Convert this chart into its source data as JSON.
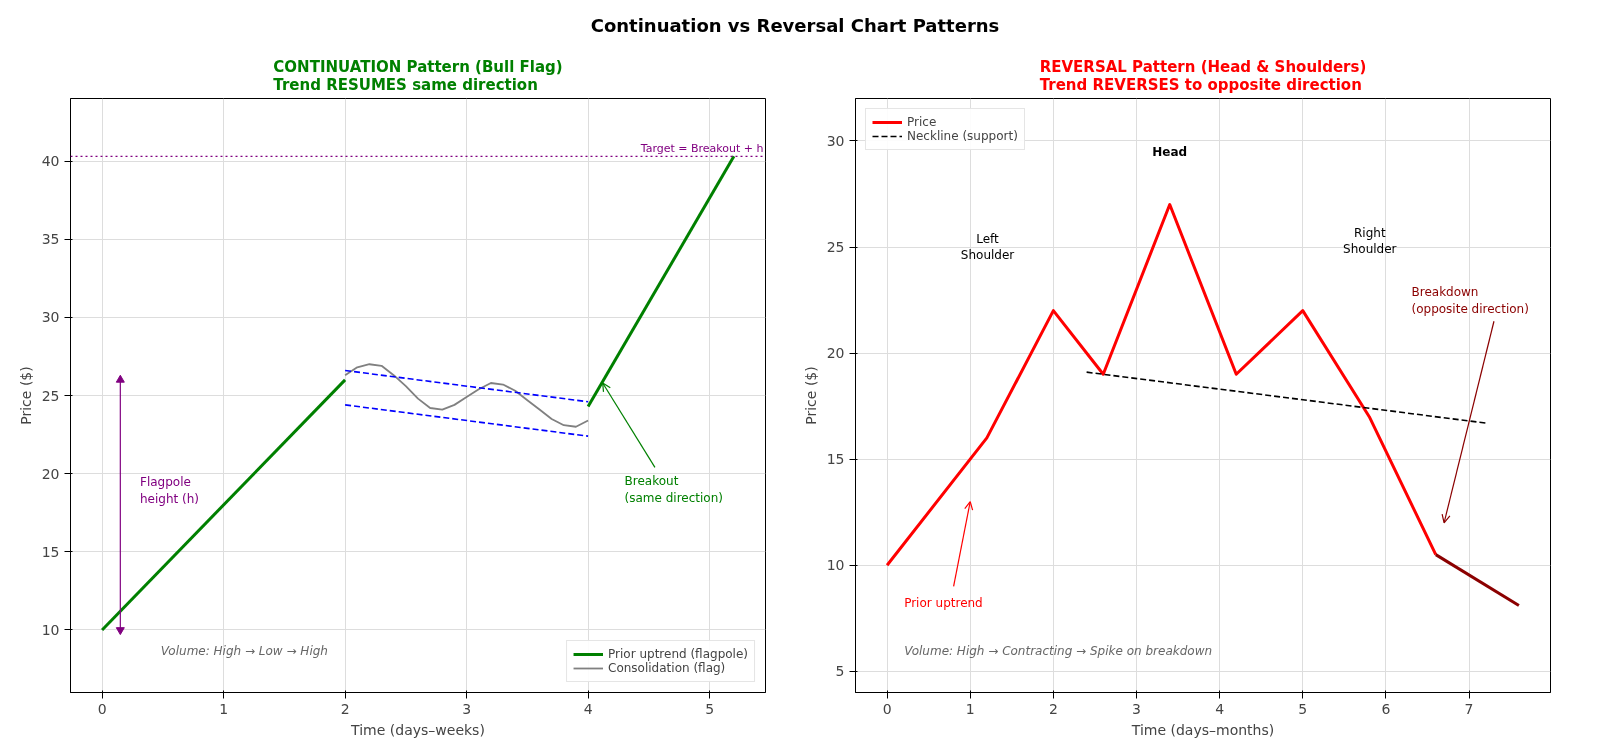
{
  "chart_data": [
    {
      "type": "other",
      "title": "Continuation vs Reversal Chart Patterns"
    },
    {
      "type": "line",
      "title": "CONTINUATION Pattern (Bull Flag)\nTrend RESUMES same direction",
      "xlabel": "Time (days–weeks)",
      "ylabel": "Price ($)",
      "xlim": [
        -0.26,
        5.46
      ],
      "ylim": [
        6,
        44
      ],
      "xticks": [
        0,
        1,
        2,
        3,
        4,
        5
      ],
      "yticks": [
        10,
        15,
        20,
        25,
        30,
        35,
        40
      ],
      "grid": true,
      "legend": "bottom right",
      "series": [
        {
          "name": "Prior uptrend (flagpole)",
          "color": "#008000",
          "x": [
            0,
            2
          ],
          "values": [
            10,
            26
          ]
        },
        {
          "name": "Consolidation (flag)",
          "color": "#808080",
          "x": [
            2.0,
            2.1,
            2.2,
            2.3,
            2.4,
            2.5,
            2.6,
            2.7,
            2.8,
            2.9,
            3.0,
            3.1,
            3.2,
            3.3,
            3.4,
            3.5,
            3.6,
            3.7,
            3.8,
            3.9,
            4.0
          ],
          "values": [
            26.3,
            26.8,
            27.0,
            26.9,
            26.3,
            25.6,
            24.8,
            24.2,
            24.1,
            24.4,
            24.9,
            25.4,
            25.8,
            25.7,
            25.3,
            24.7,
            24.1,
            23.5,
            23.1,
            23.0,
            23.4
          ]
        },
        {
          "color": "#0000ff",
          "line_style": "dashed",
          "x": [
            2,
            4
          ],
          "values": [
            26.6,
            24.6
          ]
        },
        {
          "color": "#0000ff",
          "line_style": "dashed",
          "x": [
            2,
            4
          ],
          "values": [
            24.4,
            22.4
          ]
        },
        {
          "color": "#008000",
          "x": [
            4,
            5.2
          ],
          "values": [
            24.3,
            40.3
          ]
        },
        {
          "color": "#800080",
          "marker": "triangle",
          "x": [
            0.15,
            0.15
          ],
          "values": [
            10,
            26
          ]
        }
      ],
      "ref_lines": [
        {
          "axis": "y",
          "value": 40.3,
          "label": "Target = Breakout + h",
          "color": "#800080",
          "line_style": "dotted"
        }
      ],
      "annotations": [
        "Flagpole\nheight (h)",
        {
          "text": "Breakout\n(same direction)",
          "x": 4.12,
          "y": 25.8
        },
        "Volume: High → Low → High"
      ]
    },
    {
      "type": "line",
      "title": "REVERSAL Pattern (Head & Shoulders)\nTrend REVERSES to opposite direction",
      "xlabel": "Time (days–months)",
      "ylabel": "Price ($)",
      "xlim": [
        -0.38,
        7.98
      ],
      "ylim": [
        4,
        32
      ],
      "xticks": [
        0,
        1,
        2,
        3,
        4,
        5,
        6,
        7
      ],
      "yticks": [
        5,
        10,
        15,
        20,
        25,
        30
      ],
      "grid": true,
      "legend": "top left",
      "series": [
        {
          "name": "Price",
          "color": "#ff0000",
          "x": [
            0,
            1.2,
            2,
            2.6,
            3.4,
            4.2,
            5,
            5.8,
            6.6
          ],
          "values": [
            10,
            16,
            22,
            19,
            27,
            19,
            22,
            17,
            10.5
          ]
        },
        {
          "name": "Neckline (support)",
          "color": "#000000",
          "line_style": "dashed",
          "x": [
            2.4,
            7.2
          ],
          "values": [
            19.1,
            16.7
          ]
        },
        {
          "color": "#8b0000",
          "x": [
            6.6,
            7.6
          ],
          "values": [
            10.5,
            8.1
          ]
        }
      ],
      "annotations": [
        "Head",
        "Left\nShoulder",
        "Right\nShoulder",
        "Prior uptrend",
        "Breakdown\n(opposite direction)",
        "Volume: High → Contracting → Spike on breakdown"
      ]
    }
  ]
}
